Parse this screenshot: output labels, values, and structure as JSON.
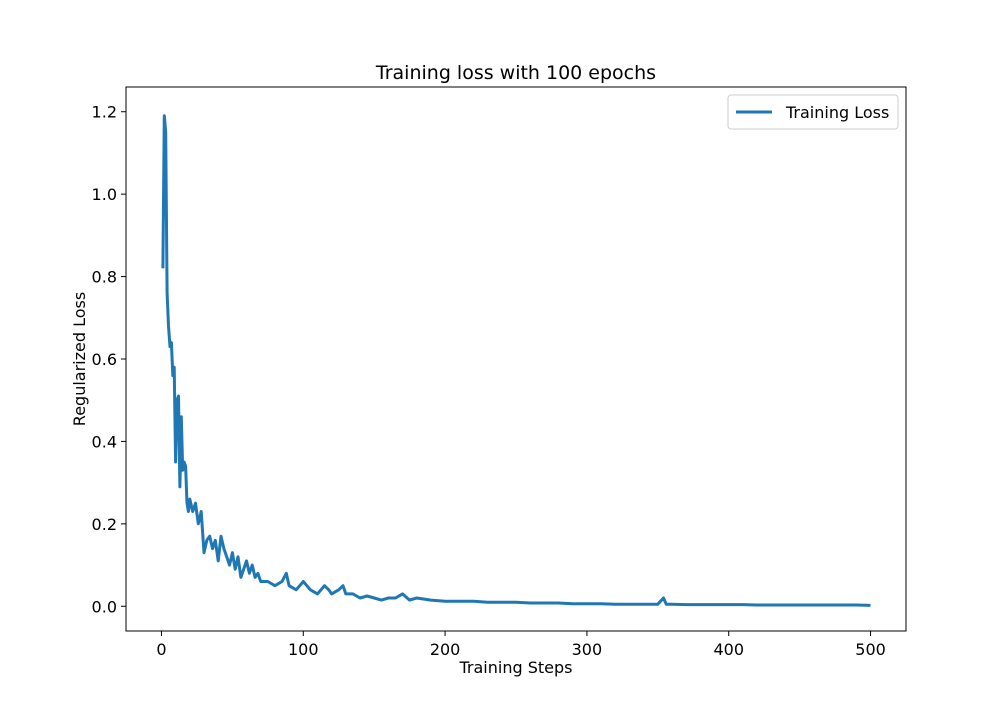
{
  "chart_data": {
    "type": "line",
    "title": "Training loss with 100 epochs",
    "xlabel": "Training Steps",
    "ylabel": "Regularized Loss",
    "xlim": [
      -25,
      525
    ],
    "ylim": [
      -0.06,
      1.26
    ],
    "xticks": [
      0,
      100,
      200,
      300,
      400,
      500
    ],
    "yticks": [
      0.0,
      0.2,
      0.4,
      0.6,
      0.8,
      1.0,
      1.2
    ],
    "ytick_labels": [
      "0.0",
      "0.2",
      "0.4",
      "0.6",
      "0.8",
      "1.0",
      "1.2"
    ],
    "grid": false,
    "legend_position": "top-right",
    "color": "#1f77b4",
    "series": [
      {
        "name": "Training Loss",
        "x": [
          1,
          2,
          3,
          4,
          5,
          6,
          7,
          8,
          9,
          10,
          11,
          12,
          13,
          14,
          15,
          16,
          17,
          18,
          19,
          20,
          22,
          24,
          26,
          28,
          30,
          32,
          34,
          36,
          38,
          40,
          42,
          44,
          46,
          48,
          50,
          52,
          54,
          56,
          58,
          60,
          62,
          64,
          66,
          68,
          70,
          75,
          80,
          85,
          88,
          90,
          95,
          100,
          105,
          110,
          115,
          118,
          120,
          125,
          128,
          130,
          135,
          140,
          145,
          150,
          155,
          160,
          165,
          170,
          175,
          180,
          190,
          200,
          210,
          220,
          230,
          240,
          250,
          260,
          270,
          280,
          290,
          300,
          310,
          320,
          330,
          340,
          350,
          354,
          356,
          360,
          370,
          380,
          390,
          400,
          410,
          420,
          430,
          440,
          450,
          460,
          470,
          480,
          490,
          500
        ],
        "y": [
          0.82,
          1.19,
          1.15,
          0.76,
          0.68,
          0.63,
          0.64,
          0.56,
          0.58,
          0.35,
          0.5,
          0.51,
          0.29,
          0.46,
          0.33,
          0.35,
          0.34,
          0.25,
          0.23,
          0.26,
          0.23,
          0.25,
          0.2,
          0.23,
          0.13,
          0.16,
          0.17,
          0.14,
          0.16,
          0.11,
          0.17,
          0.14,
          0.12,
          0.1,
          0.13,
          0.09,
          0.12,
          0.07,
          0.09,
          0.11,
          0.08,
          0.1,
          0.07,
          0.08,
          0.06,
          0.06,
          0.05,
          0.06,
          0.08,
          0.05,
          0.04,
          0.06,
          0.04,
          0.03,
          0.05,
          0.04,
          0.03,
          0.04,
          0.05,
          0.03,
          0.03,
          0.02,
          0.025,
          0.02,
          0.015,
          0.02,
          0.02,
          0.03,
          0.015,
          0.02,
          0.015,
          0.012,
          0.012,
          0.012,
          0.01,
          0.01,
          0.01,
          0.008,
          0.008,
          0.008,
          0.006,
          0.006,
          0.006,
          0.005,
          0.005,
          0.005,
          0.005,
          0.02,
          0.005,
          0.005,
          0.004,
          0.004,
          0.004,
          0.004,
          0.004,
          0.003,
          0.003,
          0.003,
          0.003,
          0.003,
          0.003,
          0.003,
          0.003,
          0.002
        ]
      }
    ]
  }
}
